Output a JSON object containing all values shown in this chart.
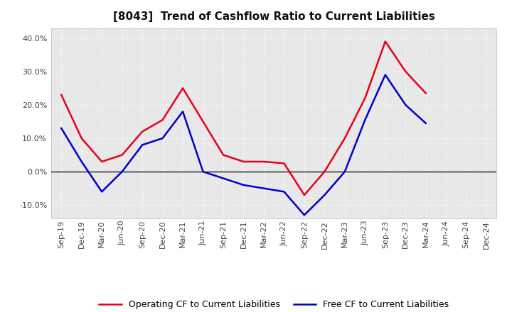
{
  "title": "[8043]  Trend of Cashflow Ratio to Current Liabilities",
  "x_labels": [
    "Sep-19",
    "Dec-19",
    "Mar-20",
    "Jun-20",
    "Sep-20",
    "Dec-20",
    "Mar-21",
    "Jun-21",
    "Sep-21",
    "Dec-21",
    "Mar-22",
    "Jun-22",
    "Sep-22",
    "Dec-22",
    "Mar-23",
    "Jun-23",
    "Sep-23",
    "Dec-23",
    "Mar-24",
    "Jun-24",
    "Sep-24",
    "Dec-24"
  ],
  "operating_cf": [
    0.23,
    0.1,
    0.03,
    0.05,
    0.12,
    0.155,
    0.25,
    0.15,
    0.05,
    0.03,
    0.03,
    0.025,
    -0.07,
    0.0,
    0.1,
    0.22,
    0.39,
    0.3,
    0.235,
    null,
    null,
    null
  ],
  "free_cf": [
    0.13,
    0.03,
    -0.06,
    0.0,
    0.08,
    0.1,
    0.18,
    0.0,
    -0.02,
    -0.04,
    -0.05,
    -0.06,
    -0.13,
    -0.07,
    0.0,
    0.155,
    0.29,
    0.2,
    0.145,
    null,
    null,
    null
  ],
  "operating_color": "#e8001c",
  "free_color": "#0000cc",
  "ylim": [
    -0.14,
    0.43
  ],
  "yticks": [
    -0.1,
    0.0,
    0.1,
    0.2,
    0.3,
    0.4
  ],
  "background_color": "#ffffff",
  "plot_bg_color": "#e8e8e8",
  "grid_color": "#ffffff",
  "legend_op": "Operating CF to Current Liabilities",
  "legend_free": "Free CF to Current Liabilities",
  "title_fontsize": 11,
  "tick_fontsize": 8
}
